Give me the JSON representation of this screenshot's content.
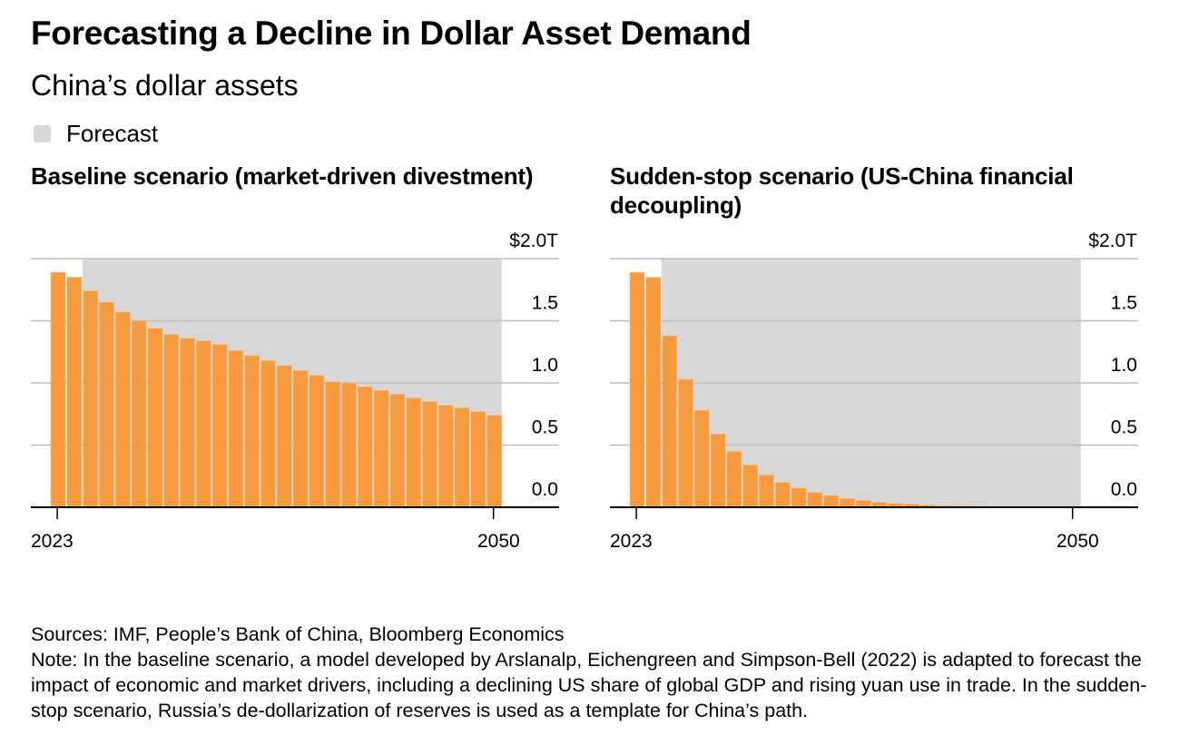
{
  "header": {
    "title": "Forecasting a Decline in Dollar Asset Demand",
    "subtitle": "China’s dollar assets"
  },
  "legend": {
    "items": [
      {
        "label": "Forecast",
        "color": "#d7d7d7"
      }
    ]
  },
  "colors": {
    "bar": "#f59b3d",
    "forecast_shade": "#d7d7d7",
    "gridline": "#bdbdbd",
    "axis": "#000000"
  },
  "chart_data": [
    {
      "type": "bar",
      "title": "Baseline scenario (market-driven divestment)",
      "xlabel": "",
      "ylabel": "",
      "ylim": [
        0,
        2.0
      ],
      "yticks": [
        0.0,
        0.5,
        1.0,
        1.5,
        2.0
      ],
      "ytick_labels": [
        "0.0",
        "0.5",
        "1.0",
        "1.5",
        "$2.0T"
      ],
      "xtick_labels": [
        "2023",
        "2050"
      ],
      "y_axis_position": "right",
      "grid": true,
      "forecast_range": [
        2025,
        2050
      ],
      "x": [
        2023,
        2024,
        2025,
        2026,
        2027,
        2028,
        2029,
        2030,
        2031,
        2032,
        2033,
        2034,
        2035,
        2036,
        2037,
        2038,
        2039,
        2040,
        2041,
        2042,
        2043,
        2044,
        2045,
        2046,
        2047,
        2048,
        2049,
        2050
      ],
      "values": [
        1.89,
        1.85,
        1.74,
        1.65,
        1.57,
        1.5,
        1.44,
        1.39,
        1.36,
        1.34,
        1.31,
        1.26,
        1.22,
        1.18,
        1.14,
        1.1,
        1.06,
        1.01,
        1.0,
        0.97,
        0.94,
        0.91,
        0.88,
        0.85,
        0.82,
        0.8,
        0.77,
        0.74
      ]
    },
    {
      "type": "bar",
      "title": "Sudden-stop scenario (US-China financial decoupling)",
      "xlabel": "",
      "ylabel": "",
      "ylim": [
        0,
        2.0
      ],
      "yticks": [
        0.0,
        0.5,
        1.0,
        1.5,
        2.0
      ],
      "ytick_labels": [
        "0.0",
        "0.5",
        "1.0",
        "1.5",
        "$2.0T"
      ],
      "xtick_labels": [
        "2023",
        "2050"
      ],
      "y_axis_position": "right",
      "grid": true,
      "forecast_range": [
        2025,
        2050
      ],
      "x": [
        2023,
        2024,
        2025,
        2026,
        2027,
        2028,
        2029,
        2030,
        2031,
        2032,
        2033,
        2034,
        2035,
        2036,
        2037,
        2038,
        2039,
        2040,
        2041,
        2042,
        2043,
        2044,
        2045,
        2046,
        2047,
        2048,
        2049,
        2050
      ],
      "values": [
        1.89,
        1.85,
        1.38,
        1.03,
        0.78,
        0.59,
        0.45,
        0.34,
        0.26,
        0.2,
        0.155,
        0.12,
        0.095,
        0.07,
        0.055,
        0.04,
        0.03,
        0.025,
        0.018,
        0.013,
        0.01,
        0.008,
        0.006,
        0.005,
        0.004,
        0.003,
        0.002,
        0.002
      ]
    }
  ],
  "footer": {
    "sources": "Sources: IMF, People’s Bank of China, Bloomberg Economics",
    "note": "Note: In the baseline scenario, a model developed by Arslanalp, Eichengreen and Simpson-Bell (2022) is adapted to forecast the impact of economic and market drivers, including a declining US share of global GDP and rising yuan use in trade. In the sudden-stop scenario, Russia’s de-dollarization of reserves is used as a template for China’s path."
  }
}
